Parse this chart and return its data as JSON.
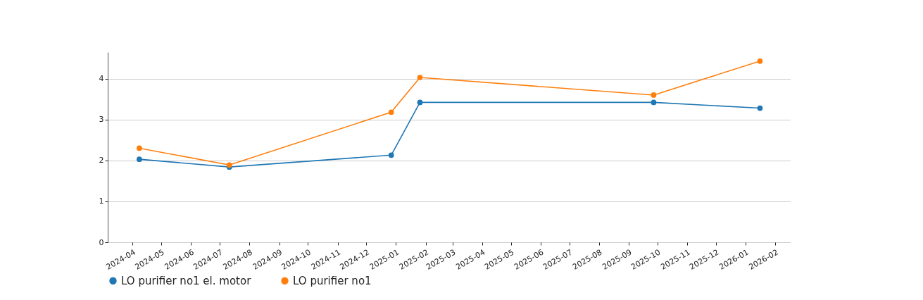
{
  "chart_data": {
    "type": "line",
    "xlim": [
      "2024-03-06",
      "2026-02-17"
    ],
    "xticks": [
      "2024-04",
      "2024-05",
      "2024-06",
      "2024-07",
      "2024-08",
      "2024-09",
      "2024-10",
      "2024-11",
      "2024-12",
      "2025-01",
      "2025-02",
      "2025-03",
      "2025-04",
      "2025-05",
      "2025-06",
      "2025-07",
      "2025-08",
      "2025-09",
      "2025-10",
      "2025-11",
      "2025-12",
      "2026-01",
      "2026-02"
    ],
    "ylim": [
      0,
      4.65
    ],
    "yticks": [
      0,
      1,
      2,
      3,
      4
    ],
    "series": [
      {
        "name": "LO purifier no1 el. motor",
        "color": "#1f77b4",
        "x": [
          "2024-04-08",
          "2024-07-11",
          "2024-12-27",
          "2025-01-26",
          "2025-09-27",
          "2026-01-16"
        ],
        "values": [
          2.03,
          1.84,
          2.13,
          3.42,
          3.42,
          3.28
        ]
      },
      {
        "name": "LO purifier no1",
        "color": "#ff7f0e",
        "x": [
          "2024-04-08",
          "2024-07-11",
          "2024-12-27",
          "2025-01-26",
          "2025-09-27",
          "2026-01-16"
        ],
        "values": [
          2.3,
          1.89,
          3.18,
          4.03,
          3.6,
          4.43
        ]
      }
    ],
    "grid": "y",
    "marker": "circle",
    "legend": "bottom"
  }
}
